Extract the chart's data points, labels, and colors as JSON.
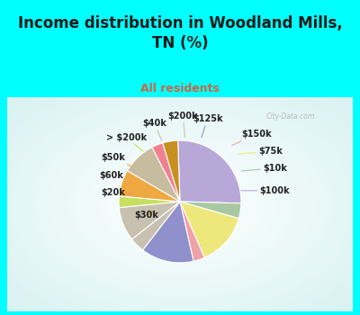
{
  "title": "Income distribution in Woodland Mills,\nTN (%)",
  "subtitle": "All residents",
  "title_color": "#1a1a1a",
  "subtitle_color": "#cc6644",
  "bg_cyan": "#00ffff",
  "labels": [
    "$100k",
    "$10k",
    "$75k",
    "$150k",
    "$125k",
    "$200k",
    "$40k",
    "> $200k",
    "$50k",
    "$60k",
    "$20k",
    "$30k"
  ],
  "values": [
    26,
    4,
    14,
    3,
    14,
    4,
    9,
    3,
    7,
    9,
    3,
    4
  ],
  "colors": [
    "#b8a8d8",
    "#a8c8a4",
    "#eee87c",
    "#f0a0a8",
    "#9090cc",
    "#c8c0b0",
    "#c8c0b0",
    "#c8e060",
    "#f0a840",
    "#c8bca0",
    "#f08090",
    "#c89020"
  ],
  "line_colors": [
    "#b8a8d8",
    "#a8c8a4",
    "#eee87c",
    "#f0a0a8",
    "#9090cc",
    "#c8c0b0",
    "#c8c0b0",
    "#c8e060",
    "#f0a840",
    "#c8bca0",
    "#f08090",
    "#c89020"
  ],
  "startangle": 92,
  "title_fontsize": 12,
  "subtitle_fontsize": 9,
  "label_fontsize": 7
}
